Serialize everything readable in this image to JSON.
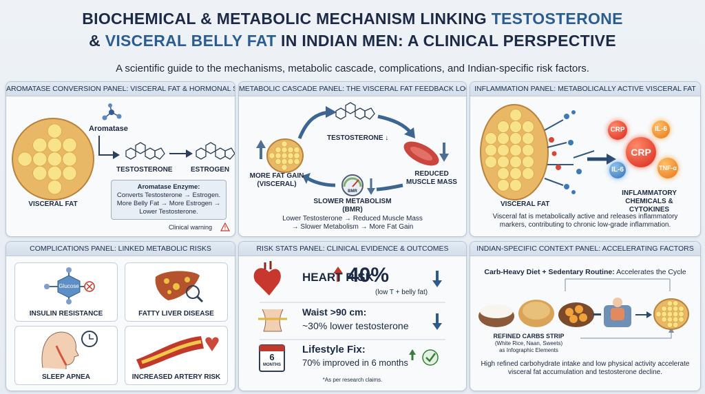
{
  "header": {
    "title_line1": [
      "BIOCHEMICAL & METABOLIC MECHANISM LINKING",
      "TESTOSTERONE"
    ],
    "title_line2": [
      "&",
      "VISCERAL BELLY FAT",
      "IN INDIAN MEN: A CLINICAL PERSPECTIVE"
    ],
    "subtitle": "A scientific guide to the mechanisms, metabolic cascade, complications, and Indian-specific risk factors."
  },
  "panels": [
    {
      "title": "AROMATASE CONVERSION PANEL: VISCERAL FAT & HORMONAL SHIFT",
      "enzyme": "Aromatase",
      "from": "TESTOSTERONE",
      "to": "ESTROGEN",
      "fat": "VISCERAL FAT",
      "box_title": "Aromatase Enzyme:",
      "box_lines": [
        "Converts Testosterone → Estrogen.",
        "More Belly Fat → More Estrogen →",
        "Lower Testosterone."
      ],
      "warning": "Clinical warning"
    },
    {
      "title": "METABOLIC CASCADE PANEL: THE VISCERAL FAT FEEDBACK LOOP",
      "top": "TESTOSTERONE ↓",
      "right": "REDUCED MUSCLE MASS",
      "bottom": "SLOWER METABOLISM (BMR)",
      "gauge": "BMR",
      "left": "MORE FAT GAIN (VISCERAL)",
      "footer_lines": [
        "Lower Testosterone → Reduced Muscle Mass",
        "→ Slower Metabolism → More Fat Gain"
      ]
    },
    {
      "title": "INFLAMMATION PANEL: METABOLICALLY ACTIVE VISCERAL FAT",
      "fat": "VISCERAL FAT",
      "markers": [
        "CRP",
        "IL-6",
        "CRP",
        "IL-6",
        "TNF-α"
      ],
      "label": "INFLAMMATORY CHEMICALS & CYTOKINES",
      "text": "Visceral fat is metabolically active and releases inflammatory markers, contributing to chronic low-grade inflammation."
    },
    {
      "title": "COMPLICATIONS PANEL: LINKED METABOLIC RISKS",
      "glucose": "Glucose",
      "items": [
        "INSULIN RESISTANCE",
        "FATTY LIVER DISEASE",
        "SLEEP APNEA",
        "INCREASED ARTERY RISK"
      ]
    },
    {
      "title": "RISK STATS PANEL: CLINICAL EVIDENCE & OUTCOMES",
      "heart_label": "HEART RISK",
      "heart_value": "40%",
      "heart_note": "(low T + belly fat)",
      "waist_label": "Waist >90 cm:",
      "waist_value": "~30% lower testosterone",
      "fix_label": "Lifestyle Fix:",
      "fix_value": "70% improved in 6 months",
      "calendar_number": "6",
      "calendar_label": "MONTHS",
      "footnote": "*As per research claims."
    },
    {
      "title": "INDIAN-SPECIFIC CONTEXT PANEL: ACCELERATING FACTORS",
      "headline_bold": "Carb-Heavy Diet + Sedentary Routine:",
      "headline_rest": "Accelerates the Cycle",
      "strip_title": "REFINED CARBS STRIP",
      "strip_lines": [
        "(White Rice, Naan, Sweets)",
        "as Infographic Elements"
      ],
      "text": "High refined carbohydrate intake and low physical activity accelerate visceral fat accumulation and testosterone decline."
    }
  ]
}
